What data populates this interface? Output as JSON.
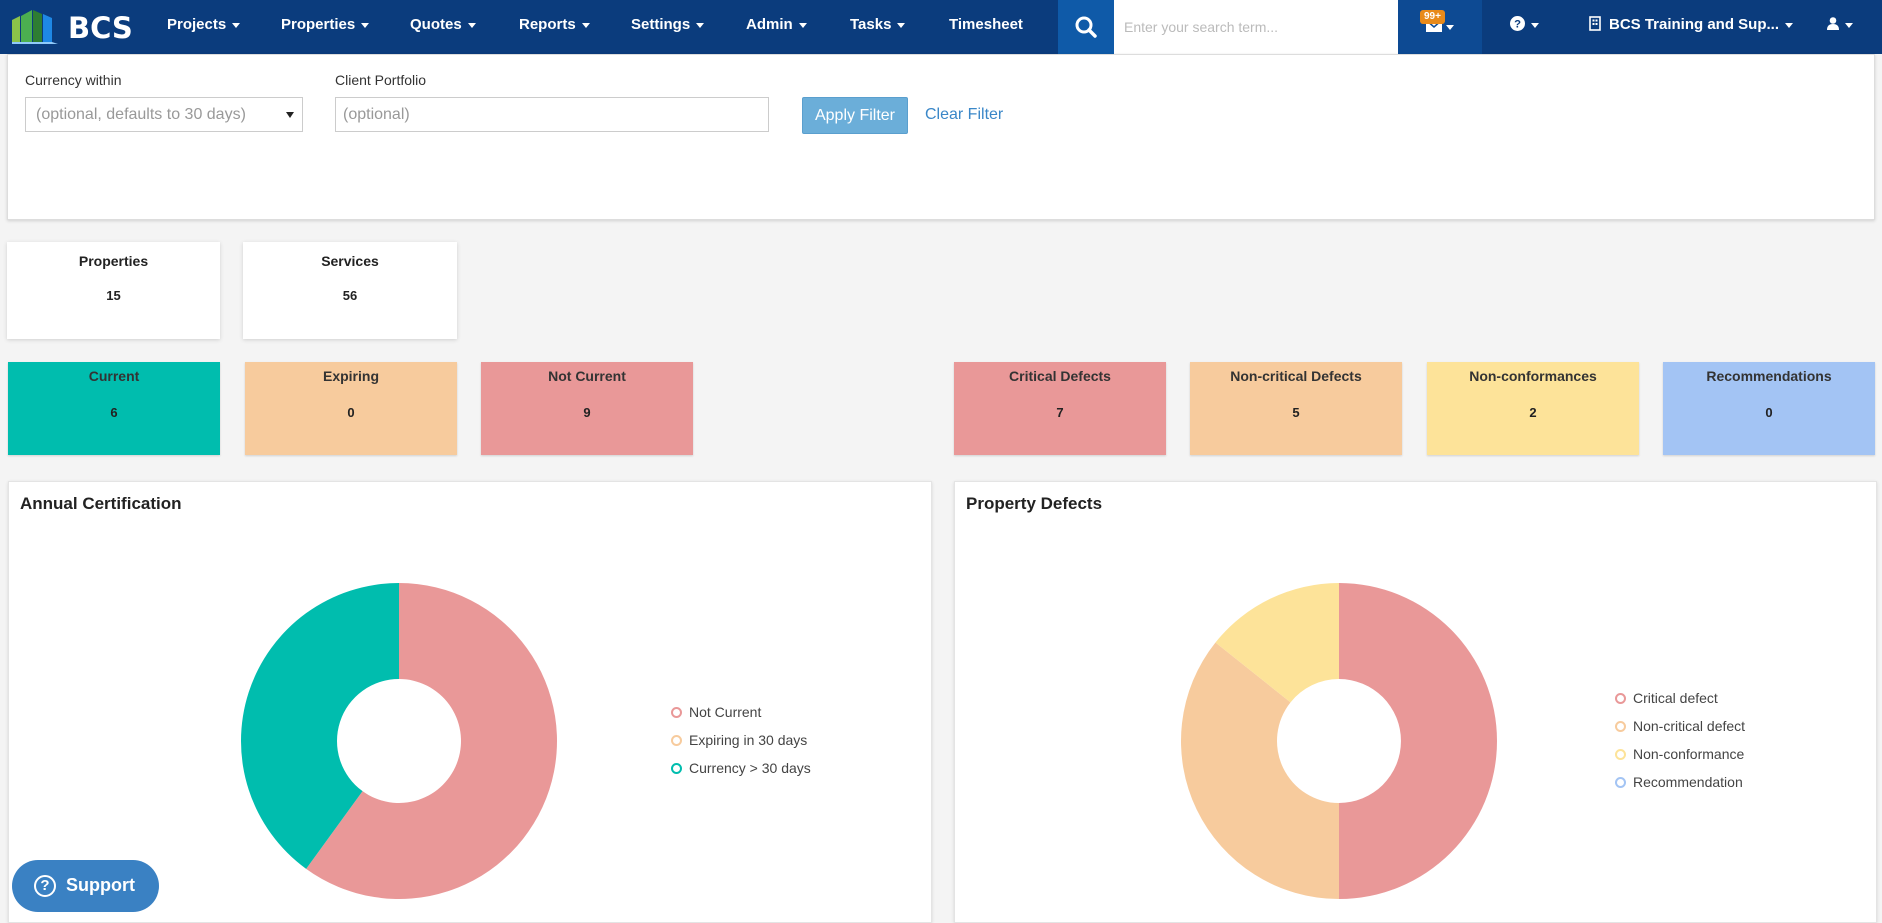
{
  "navbar": {
    "brand": "BCS",
    "items": [
      {
        "label": "Projects",
        "caret": true
      },
      {
        "label": "Properties",
        "caret": true
      },
      {
        "label": "Quotes",
        "caret": true
      },
      {
        "label": "Reports",
        "caret": true
      },
      {
        "label": "Settings",
        "caret": true
      },
      {
        "label": "Admin",
        "caret": true
      },
      {
        "label": "Tasks",
        "caret": true
      },
      {
        "label": "Timesheet",
        "caret": false
      }
    ],
    "search_placeholder": "Enter your search term...",
    "mail_badge": "99+",
    "org_name": "BCS Training and Sup...",
    "icons": {
      "search": "search-icon",
      "mail": "envelope-icon",
      "help": "question-circle-icon",
      "org": "building-icon",
      "user": "user-icon"
    },
    "colors": {
      "bar": "#0b3c7d",
      "search_btn": "#0f5aa8",
      "badge": "#e88a1a"
    }
  },
  "filter": {
    "currency_label": "Currency within",
    "currency_value": "(optional, defaults to 30 days)",
    "portfolio_label": "Client Portfolio",
    "portfolio_placeholder": "(optional)",
    "apply_label": "Apply Filter",
    "clear_label": "Clear Filter"
  },
  "summary": [
    {
      "label": "Properties",
      "value": "15"
    },
    {
      "label": "Services",
      "value": "56"
    }
  ],
  "certification_status": [
    {
      "label": "Current",
      "value": "6",
      "color": "#00bdae"
    },
    {
      "label": "Expiring",
      "value": "0",
      "color": "#f7cb9d"
    },
    {
      "label": "Not Current",
      "value": "9",
      "color": "#e99898"
    }
  ],
  "defect_status": [
    {
      "label": "Critical Defects",
      "value": "7",
      "color": "#e99898"
    },
    {
      "label": "Non-critical Defects",
      "value": "5",
      "color": "#f7cb9d"
    },
    {
      "label": "Non-conformances",
      "value": "2",
      "color": "#fde399"
    },
    {
      "label": "Recommendations",
      "value": "0",
      "color": "#a3c4f4"
    }
  ],
  "panels": {
    "certification_title": "Annual Certification",
    "defects_title": "Property Defects"
  },
  "support": {
    "label": "Support",
    "icon": "question-circle-icon"
  },
  "chart_data": [
    {
      "type": "pie",
      "title": "Annual Certification",
      "donut": true,
      "legend": "right",
      "categories": [
        "Not Current",
        "Expiring in 30 days",
        "Currency > 30 days"
      ],
      "values": [
        9,
        0,
        6
      ],
      "colors": [
        "#e99898",
        "#f7cb9d",
        "#00bdae"
      ]
    },
    {
      "type": "pie",
      "title": "Property Defects",
      "donut": true,
      "legend": "right",
      "categories": [
        "Critical defect",
        "Non-critical defect",
        "Non-conformance",
        "Recommendation"
      ],
      "values": [
        7,
        5,
        2,
        0
      ],
      "colors": [
        "#e99898",
        "#f7cb9d",
        "#fde399",
        "#a3c4f4"
      ]
    }
  ]
}
